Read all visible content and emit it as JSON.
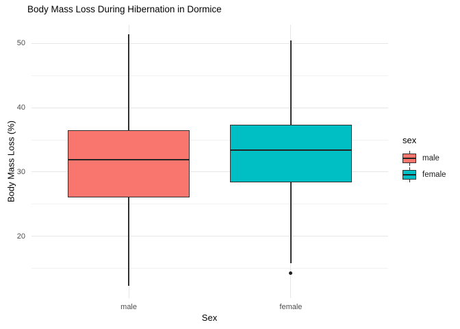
{
  "chart_data": {
    "type": "boxplot",
    "title": "Body Mass Loss During Hibernation in Dormice",
    "xlabel": "Sex",
    "ylabel": "Body Mass Loss (%)",
    "categories": [
      "male",
      "female"
    ],
    "series": [
      {
        "name": "male",
        "color": "#F8766D",
        "whisker_low": 12.3,
        "q1": 26.1,
        "median": 31.9,
        "q3": 36.5,
        "whisker_high": 51.4,
        "outliers": []
      },
      {
        "name": "female",
        "color": "#00BFC4",
        "whisker_low": 15.8,
        "q1": 28.4,
        "median": 33.4,
        "q3": 37.4,
        "whisker_high": 50.5,
        "outliers": [
          14.3
        ]
      }
    ],
    "y_axis": {
      "range": [
        10.4,
        52.9
      ],
      "major_ticks": [
        20,
        30,
        40,
        50
      ],
      "minor_ticks": [
        15,
        25,
        35,
        45
      ]
    },
    "grid": "major+minor horizontal, major vertical at categories",
    "legend": {
      "title": "sex",
      "position": "right",
      "entries": [
        {
          "label": "male",
          "color": "#F8766D"
        },
        {
          "label": "female",
          "color": "#00BFC4"
        }
      ]
    },
    "style_colors": {
      "box_border": "#2F2F2F",
      "median": "#252525",
      "grid_major": "#E6E6E6",
      "grid_minor": "#F1F1F1",
      "tick_text": "#4D4D4D",
      "title_text": "#000000",
      "outlier": "#1F1F1F"
    }
  }
}
